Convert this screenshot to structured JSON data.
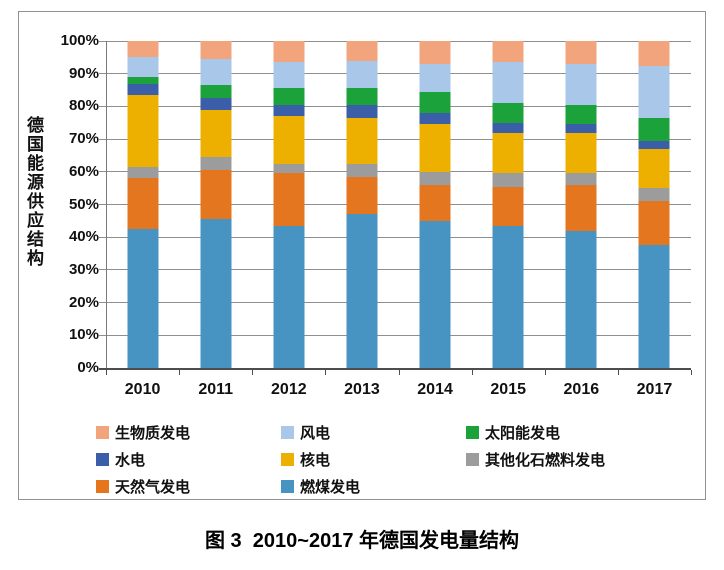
{
  "figure": {
    "caption": "图 3  2010~2017 年德国发电量结构",
    "y_axis_title": "德国能源供应结构"
  },
  "chart_data": {
    "type": "bar",
    "subtype": "stacked-100-percent",
    "title": "图 3 2010~2017 年德国发电量结构",
    "xlabel": "",
    "ylabel": "德国能源供应结构",
    "ylim": [
      0,
      100
    ],
    "grid": "horizontal",
    "unit": "%",
    "categories": [
      "2010",
      "2011",
      "2012",
      "2013",
      "2014",
      "2015",
      "2016",
      "2017"
    ],
    "y_ticks": [
      "0%",
      "10%",
      "20%",
      "30%",
      "40%",
      "50%",
      "60%",
      "70%",
      "80%",
      "90%",
      "100%"
    ],
    "series": [
      {
        "name": "燃煤发电",
        "color": "#4793C2",
        "values": [
          42.5,
          45.5,
          43.5,
          47,
          45,
          43.5,
          42,
          37.5
        ]
      },
      {
        "name": "天然气发电",
        "color": "#E4761F",
        "values": [
          15.5,
          15,
          16,
          11.5,
          11,
          12,
          14,
          13.5
        ]
      },
      {
        "name": "其他化石燃料发电",
        "color": "#9C9C9C",
        "values": [
          3.5,
          4,
          3,
          4,
          4,
          4,
          3.5,
          4
        ]
      },
      {
        "name": "核电",
        "color": "#EDB000",
        "values": [
          22,
          14.5,
          14.5,
          14,
          14.5,
          12.5,
          12.5,
          12
        ]
      },
      {
        "name": "水电",
        "color": "#3B5EA9",
        "values": [
          3.5,
          3.5,
          3.5,
          4,
          3.5,
          3,
          2.5,
          2.5
        ]
      },
      {
        "name": "太阳能发电",
        "color": "#1CA23A",
        "values": [
          2,
          4,
          5,
          5,
          6.5,
          6,
          6,
          7
        ]
      },
      {
        "name": "风电",
        "color": "#A9C7E8",
        "values": [
          6,
          8,
          8,
          8.5,
          8.5,
          12.5,
          12.5,
          16
        ]
      },
      {
        "name": "生物质发电",
        "color": "#F2A47C",
        "values": [
          5,
          5.5,
          6.5,
          6,
          7,
          6.5,
          7,
          7.5
        ]
      }
    ],
    "legend": {
      "position": "bottom",
      "order": [
        "生物质发电",
        "风电",
        "太阳能发电",
        "水电",
        "核电",
        "其他化石燃料发电",
        "天然气发电",
        "燃煤发电"
      ]
    }
  }
}
